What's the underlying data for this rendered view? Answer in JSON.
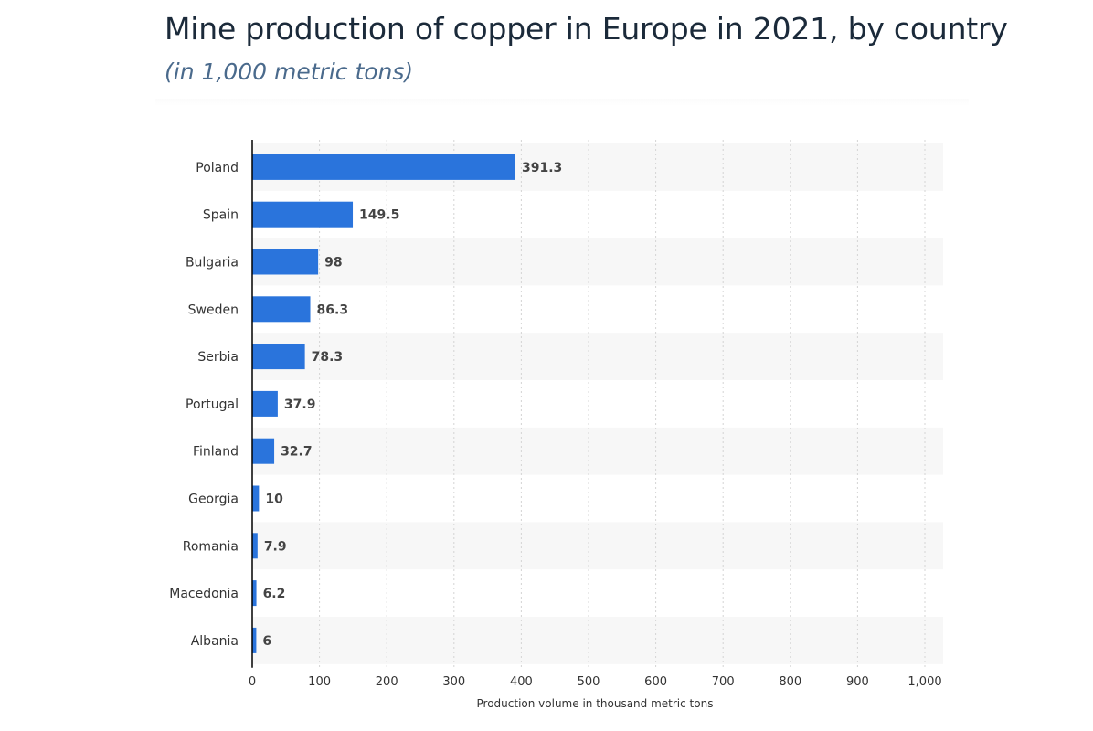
{
  "header": {
    "title": "Mine production of copper in Europe in 2021, by country",
    "subtitle": "(in 1,000 metric tons)"
  },
  "colors": {
    "bar": "#2a74dc",
    "band": "#f7f7f7",
    "grid": "#d4d4d4",
    "axis": "#000000",
    "text": "#333333",
    "label": "#444444"
  },
  "chart_data": {
    "type": "bar",
    "orientation": "horizontal",
    "categories": [
      "Poland",
      "Spain",
      "Bulgaria",
      "Sweden",
      "Serbia",
      "Portugal",
      "Finland",
      "Georgia",
      "Romania",
      "Macedonia",
      "Albania"
    ],
    "values": [
      391.3,
      149.5,
      98,
      86.3,
      78.3,
      37.9,
      32.7,
      10,
      7.9,
      6.2,
      6
    ],
    "value_labels": [
      "391.3",
      "149.5",
      "98",
      "86.3",
      "78.3",
      "37.9",
      "32.7",
      "10",
      "7.9",
      "6.2",
      "6"
    ],
    "title": "Mine production of copper in Europe in 2021, by country",
    "subtitle": "(in 1,000 metric tons)",
    "xlabel": "Production volume in thousand metric tons",
    "ylabel": "",
    "xlim": [
      0,
      1000
    ],
    "x_ticks": [
      0,
      100,
      200,
      300,
      400,
      500,
      600,
      700,
      800,
      900,
      1000
    ],
    "x_tick_labels": [
      "0",
      "100",
      "200",
      "300",
      "400",
      "500",
      "600",
      "700",
      "800",
      "900",
      "1,000"
    ],
    "grid": true,
    "legend": "none"
  }
}
